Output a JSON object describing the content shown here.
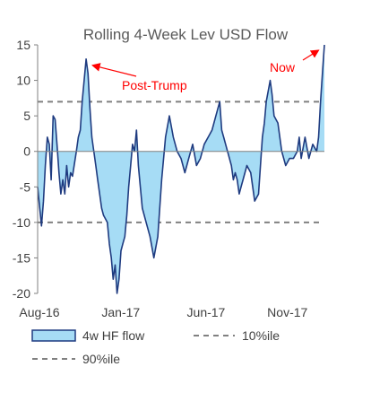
{
  "chart_data": {
    "type": "area",
    "title": "Rolling 4-Week Lev USD Flow",
    "ylim": [
      -20,
      15
    ],
    "y_ticks": [
      "15",
      "10",
      "5",
      "0",
      "-5",
      "-10",
      "-15",
      "-20"
    ],
    "x_ticks": [
      "Aug-16",
      "Jan-17",
      "Jun-17",
      "Nov-17"
    ],
    "x_tick_weeks": [
      0,
      21,
      43,
      64
    ],
    "series": [
      {
        "name": "4w HF flow",
        "fill": "#a6dcf5",
        "stroke": "#1f3b80",
        "x_week": [
          0,
          1,
          1.5,
          2,
          2.5,
          3,
          3.5,
          4,
          4.5,
          5,
          5.5,
          6,
          6.5,
          7,
          7.5,
          8,
          8.5,
          9,
          10,
          10.5,
          11,
          11.5,
          12,
          12.5,
          13,
          13.5,
          14,
          14.5,
          15,
          15.5,
          16,
          16.5,
          17,
          18,
          18.5,
          19,
          19.5,
          20,
          20.5,
          21,
          21.5,
          22,
          22.5,
          23,
          23.5,
          24,
          24.5,
          25,
          25.5,
          26,
          26.5,
          27,
          28,
          29,
          30,
          31,
          32,
          33,
          34,
          35,
          36,
          37,
          38,
          39,
          40,
          41,
          42,
          43,
          44,
          45,
          46,
          47,
          47.5,
          48,
          49,
          50,
          50.5,
          51,
          51.5,
          52,
          52.5,
          53,
          54,
          55,
          56,
          57,
          58,
          58.5,
          59,
          60,
          60.5,
          61,
          62,
          63,
          64,
          65,
          66,
          67,
          67.5,
          68,
          69,
          70,
          71,
          72,
          72.5,
          73,
          73.5,
          74
        ],
        "values": [
          -5,
          -10.5,
          -7,
          -2,
          2,
          1,
          -4,
          5,
          4.5,
          1,
          -3,
          -6,
          -4,
          -6,
          -2,
          -5,
          -3,
          -3.5,
          0,
          2,
          3,
          7,
          10,
          13,
          11,
          6,
          2,
          0,
          -2,
          -4,
          -6,
          -8,
          -9,
          -10,
          -13,
          -15,
          -18,
          -16,
          -20,
          -18,
          -14,
          -13,
          -12,
          -9,
          -5,
          -2,
          1,
          0,
          3,
          -2,
          -5,
          -8,
          -10,
          -12,
          -15,
          -12,
          -4,
          2,
          5,
          2,
          0,
          -1,
          -3,
          -1,
          1,
          -2,
          -1,
          1,
          2,
          3,
          5,
          7,
          3,
          2,
          0,
          -2,
          -4,
          -3,
          -4,
          -6,
          -5,
          -4,
          -2,
          -3,
          -7,
          -6,
          2,
          4,
          7,
          10,
          8,
          5,
          4,
          0,
          -2,
          -1,
          -1,
          0,
          2,
          -1,
          2,
          -1,
          1,
          0,
          2,
          7,
          11,
          15
        ]
      }
    ],
    "reference_lines": [
      {
        "name": "10%ile",
        "value": -10,
        "color": "#808080",
        "style": "dashed"
      },
      {
        "name": "90%ile",
        "value": 7,
        "color": "#808080",
        "style": "dashed"
      }
    ],
    "annotations": [
      {
        "text": "Post-Trump",
        "color": "#ff0000",
        "target_week": 13,
        "target_value": 12.5
      },
      {
        "text": "Now",
        "color": "#ff0000",
        "target_week": 73.2,
        "target_value": 14.5
      }
    ],
    "grid": false,
    "legend_position": "bottom"
  }
}
